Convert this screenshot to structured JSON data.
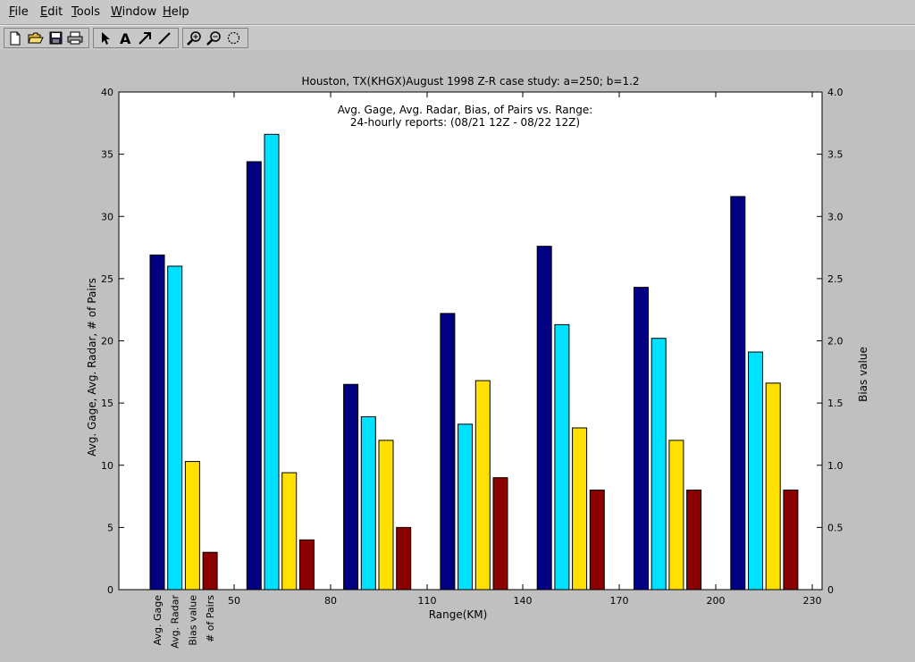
{
  "menu": [
    {
      "label": "File",
      "accel": "F",
      "rest": "ile"
    },
    {
      "label": "Edit",
      "accel": "E",
      "rest": "dit"
    },
    {
      "label": "Tools",
      "accel": "T",
      "rest": "ools"
    },
    {
      "label": "Window",
      "accel": "W",
      "rest": "indow"
    },
    {
      "label": "Help",
      "accel": "H",
      "rest": "elp"
    }
  ],
  "toolbar": {
    "file_tools": [
      "new-file-icon",
      "open-folder-icon",
      "save-icon",
      "print-icon"
    ],
    "draw_tools": [
      "pointer-arrow-icon",
      "text-tool-icon",
      "arrow-tool-icon",
      "line-tool-icon"
    ],
    "view_tools": [
      "zoom-in-icon",
      "zoom-out-icon",
      "rotate-icon"
    ]
  },
  "chart_data": {
    "type": "bar",
    "title": "Houston, TX(KHGX)August 1998 Z-R case study: a=250; b=1.2",
    "subtitle": [
      "Avg. Gage, Avg. Radar, Bias, of Pairs vs. Range:",
      "24-hourly reports: (08/21 12Z - 08/22 12Z)"
    ],
    "xlabel": "Range(KM)",
    "ylabel": "Avg. Gage, Avg. Radar, # of Pairs",
    "y2label": "Bias value",
    "ylim": [
      0,
      40
    ],
    "y2lim": [
      0,
      4.0
    ],
    "yticks": [
      "0",
      "5",
      "10",
      "15",
      "20",
      "25",
      "30",
      "35",
      "40"
    ],
    "y2ticks": [
      "0",
      "0.5",
      "1.0",
      "1.5",
      "2.0",
      "2.5",
      "3.0",
      "3.5",
      "4.0"
    ],
    "xticks": [
      "50",
      "80",
      "110",
      "140",
      "170",
      "200",
      "230"
    ],
    "series_labels": [
      "Avg. Gage",
      "Avg. Radar",
      "Bias value",
      "# of Pairs"
    ],
    "colors": [
      "#000080",
      "#00e0ff",
      "#ffe000",
      "#8b0000"
    ],
    "groups": [
      {
        "values": [
          26.9,
          26.0,
          10.3,
          3.0
        ]
      },
      {
        "values": [
          34.4,
          36.6,
          9.4,
          4.0
        ]
      },
      {
        "values": [
          16.5,
          13.9,
          12.0,
          5.0
        ]
      },
      {
        "values": [
          22.2,
          13.3,
          16.8,
          9.0
        ]
      },
      {
        "values": [
          27.6,
          21.3,
          13.0,
          8.0
        ]
      },
      {
        "values": [
          24.3,
          20.2,
          12.0,
          8.0
        ]
      },
      {
        "values": [
          31.6,
          19.1,
          16.6,
          8.0
        ]
      }
    ]
  }
}
